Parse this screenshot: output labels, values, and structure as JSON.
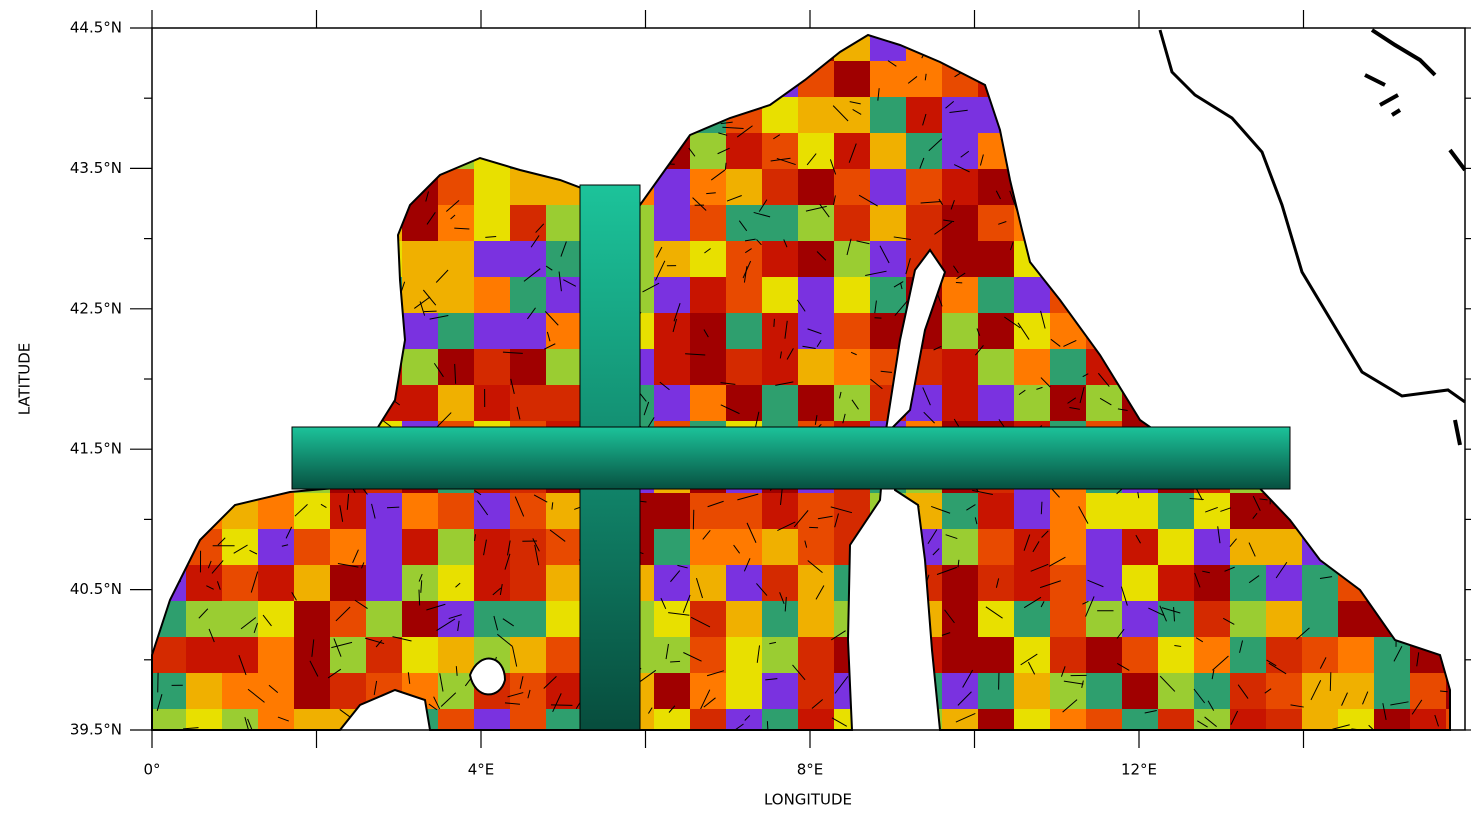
{
  "chart_data": {
    "type": "map",
    "xlabel": "LONGITUDE",
    "ylabel": "LATITUDE",
    "xlim": [
      0,
      16
    ],
    "ylim": [
      39.5,
      44.5
    ],
    "xticks": [
      {
        "value": 0,
        "label": "0°"
      },
      {
        "value": 4,
        "label": "4°E"
      },
      {
        "value": 8,
        "label": "8°E"
      },
      {
        "value": 12,
        "label": "12°E"
      }
    ],
    "yticks": [
      {
        "value": 39.5,
        "label": "39.5°N"
      },
      {
        "value": 40.5,
        "label": "40.5°N"
      },
      {
        "value": 41.5,
        "label": "41.5°N"
      },
      {
        "value": 42.5,
        "label": "42.5°N"
      },
      {
        "value": 43.5,
        "label": "43.5°N"
      },
      {
        "value": 44.5,
        "label": "44.5°N"
      }
    ]
  }
}
